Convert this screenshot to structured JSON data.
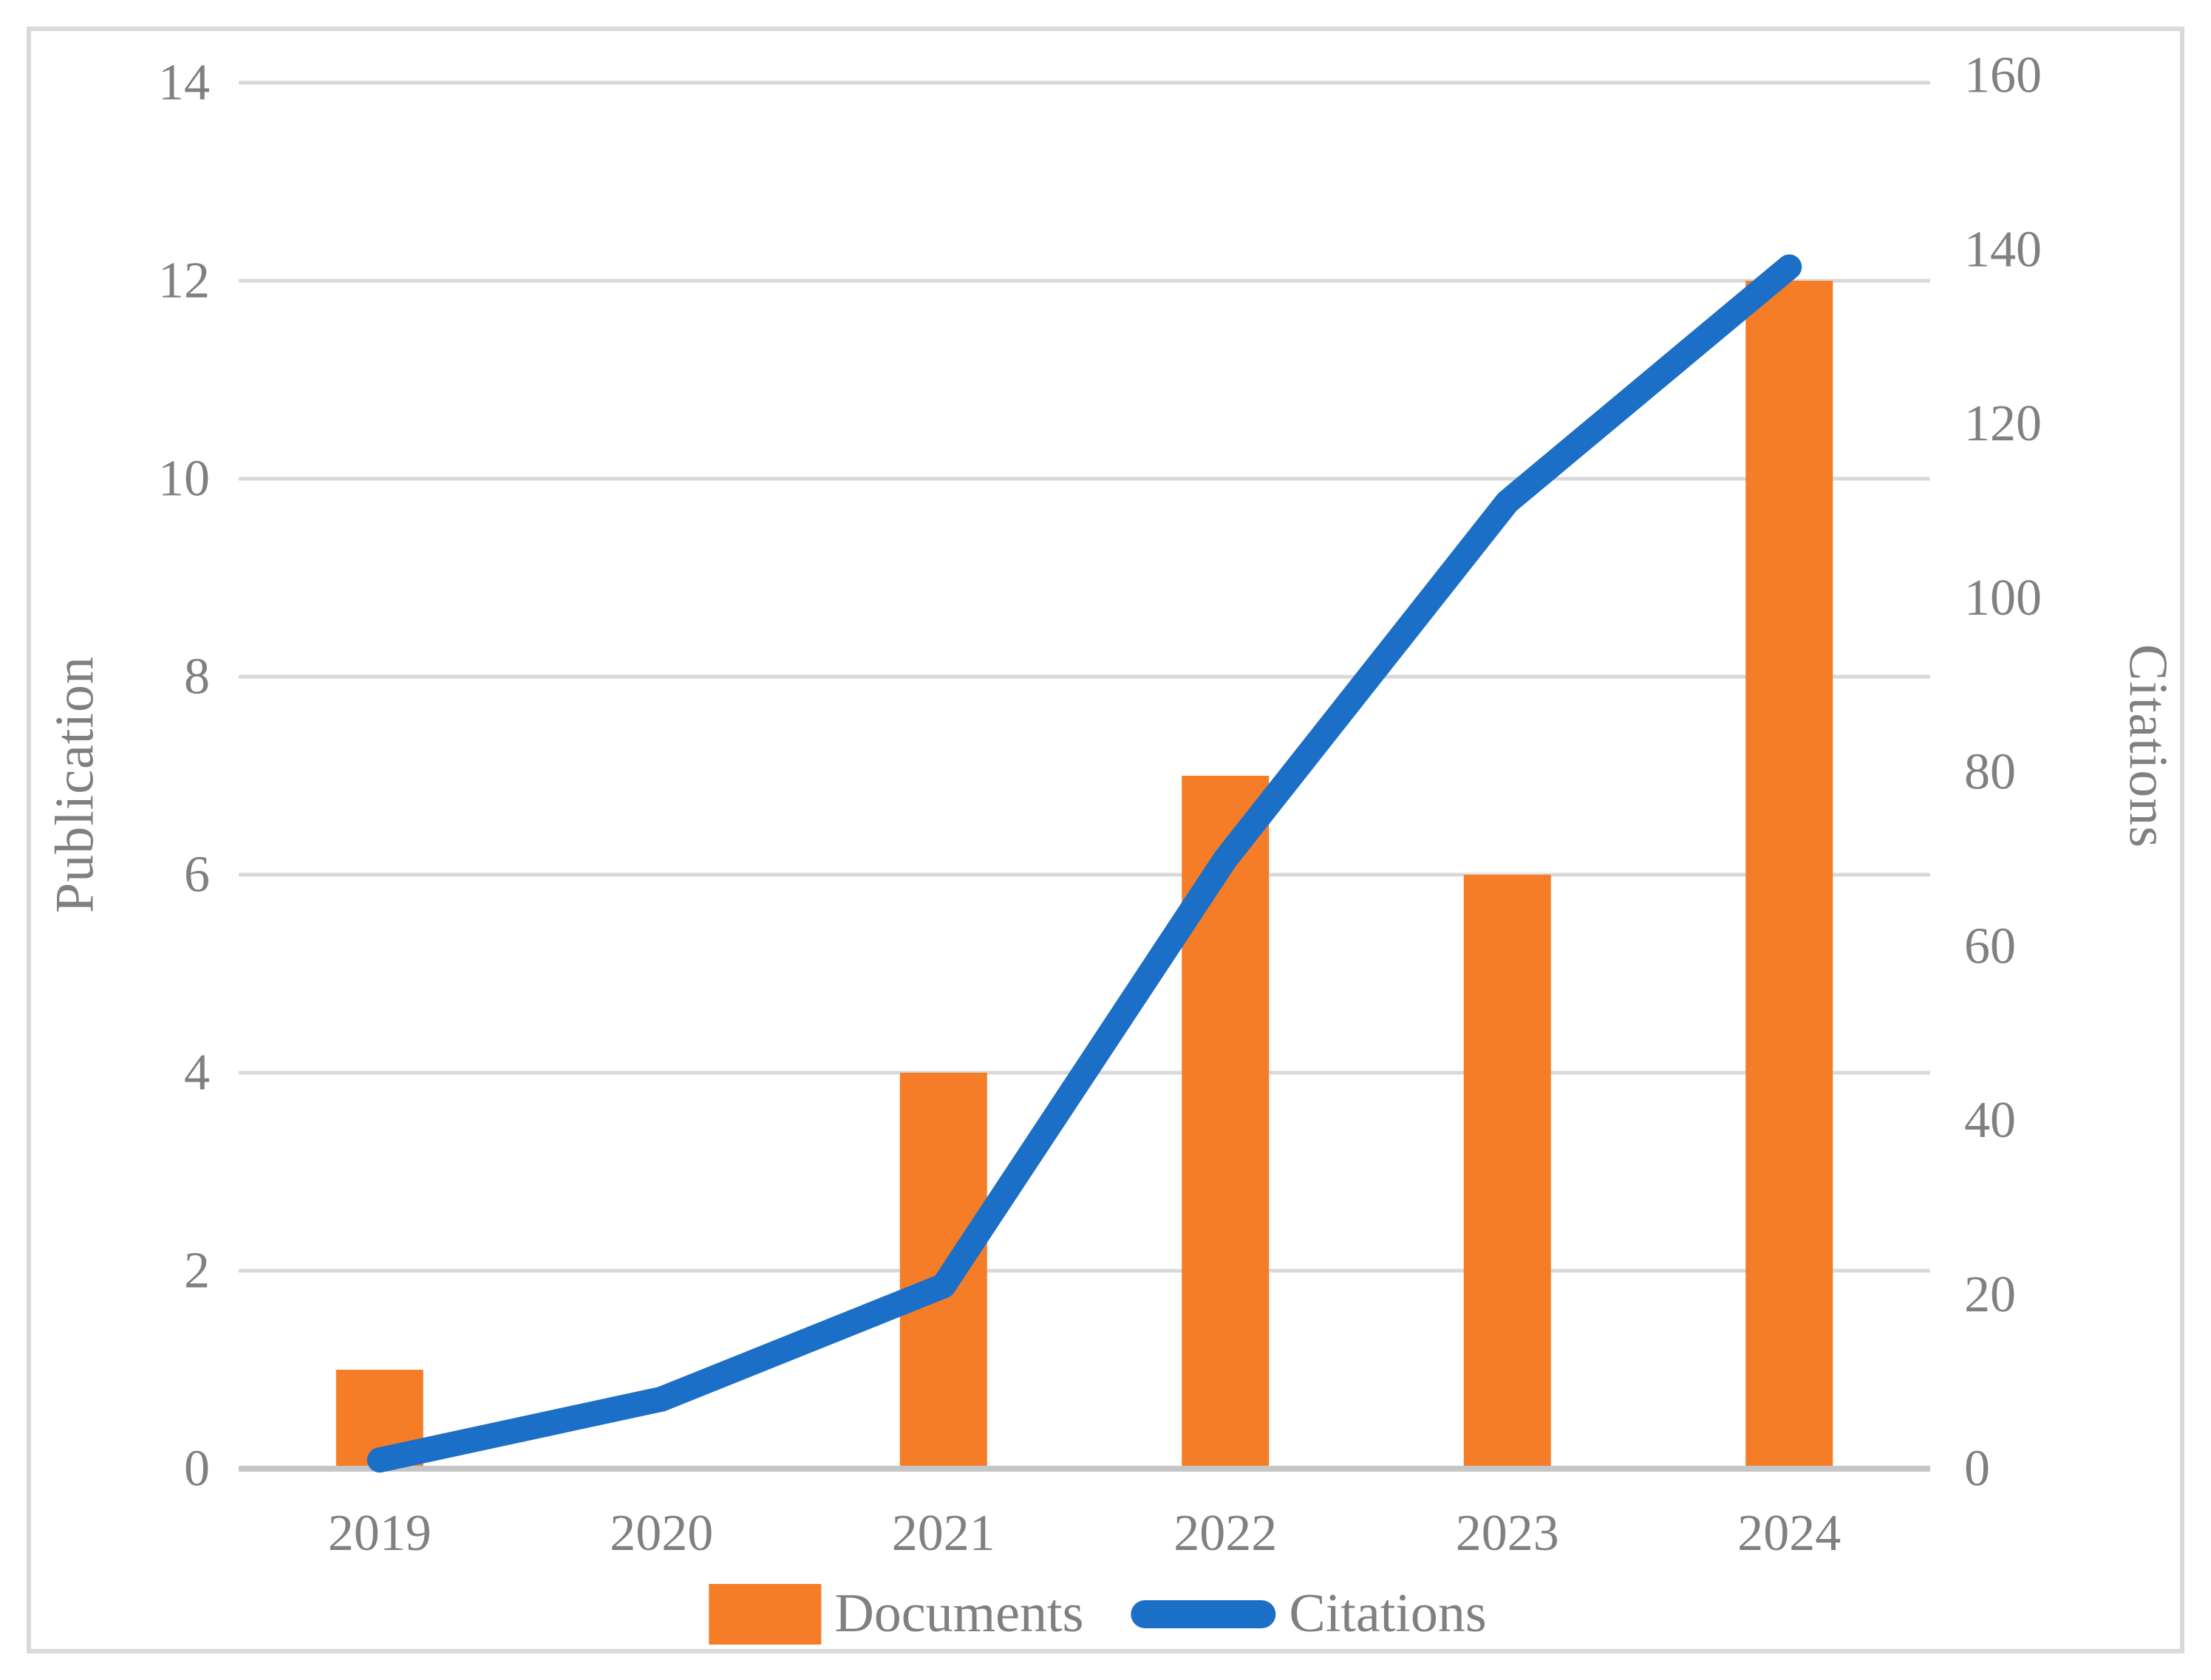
{
  "figure": {
    "left_axis_title": "Publication",
    "right_axis_title": "Citations"
  },
  "legend": {
    "documents_label": "Documents",
    "citations_label": "Citations"
  },
  "colors": {
    "bar_orange": "#f57d27",
    "line_blue": "#1c6fc7",
    "gridline": "#d9d9d9",
    "axis_line": "#c6c6c6",
    "tick_text": "#808080",
    "frame_border": "#d9d9d9"
  },
  "chart_data": {
    "type": "bar+line combo",
    "categories": [
      "2019",
      "2020",
      "2021",
      "2022",
      "2023",
      "2024"
    ],
    "series": [
      {
        "name": "Documents",
        "type": "bar",
        "axis": "left",
        "values": [
          1,
          0,
          4,
          7,
          6,
          12
        ]
      },
      {
        "name": "Citations",
        "type": "line",
        "axis": "right",
        "values": [
          1,
          8,
          21,
          70,
          111,
          138
        ]
      }
    ],
    "title": "",
    "xlabel": "",
    "left_axis": {
      "label": "Publication",
      "min": 0,
      "max": 14,
      "tick_step": 2,
      "ticks": [
        0,
        2,
        4,
        6,
        8,
        10,
        12,
        14
      ]
    },
    "right_axis": {
      "label": "Citations",
      "min": 0,
      "max": 160,
      "tick_step": 20,
      "ticks": [
        0,
        20,
        40,
        60,
        80,
        100,
        120,
        140,
        160
      ]
    },
    "grid": "horizontal gridlines on left-axis ticks",
    "legend_position": "bottom center"
  }
}
